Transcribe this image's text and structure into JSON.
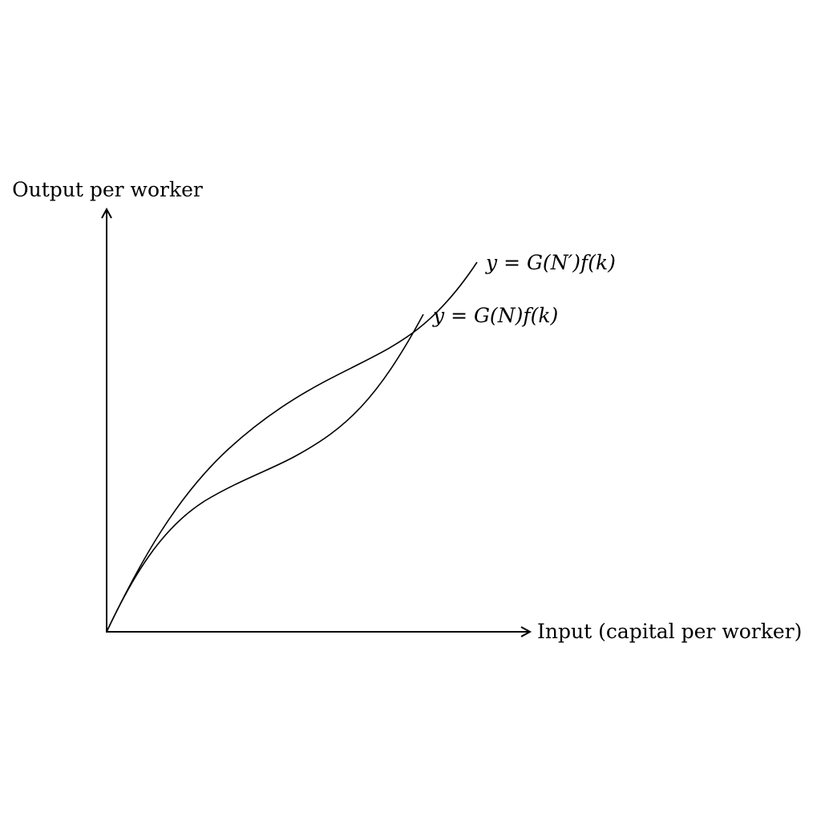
{
  "axes": {
    "y_label": "Output per worker",
    "x_label": "Input (capital per worker)"
  },
  "curves": [
    {
      "id": "g-n-prime",
      "label": "y = G(N′)f(k)"
    },
    {
      "id": "g-n",
      "label": "y = G(N)f(k)"
    }
  ],
  "colors": {
    "ink": "#000000",
    "background": "#ffffff"
  }
}
